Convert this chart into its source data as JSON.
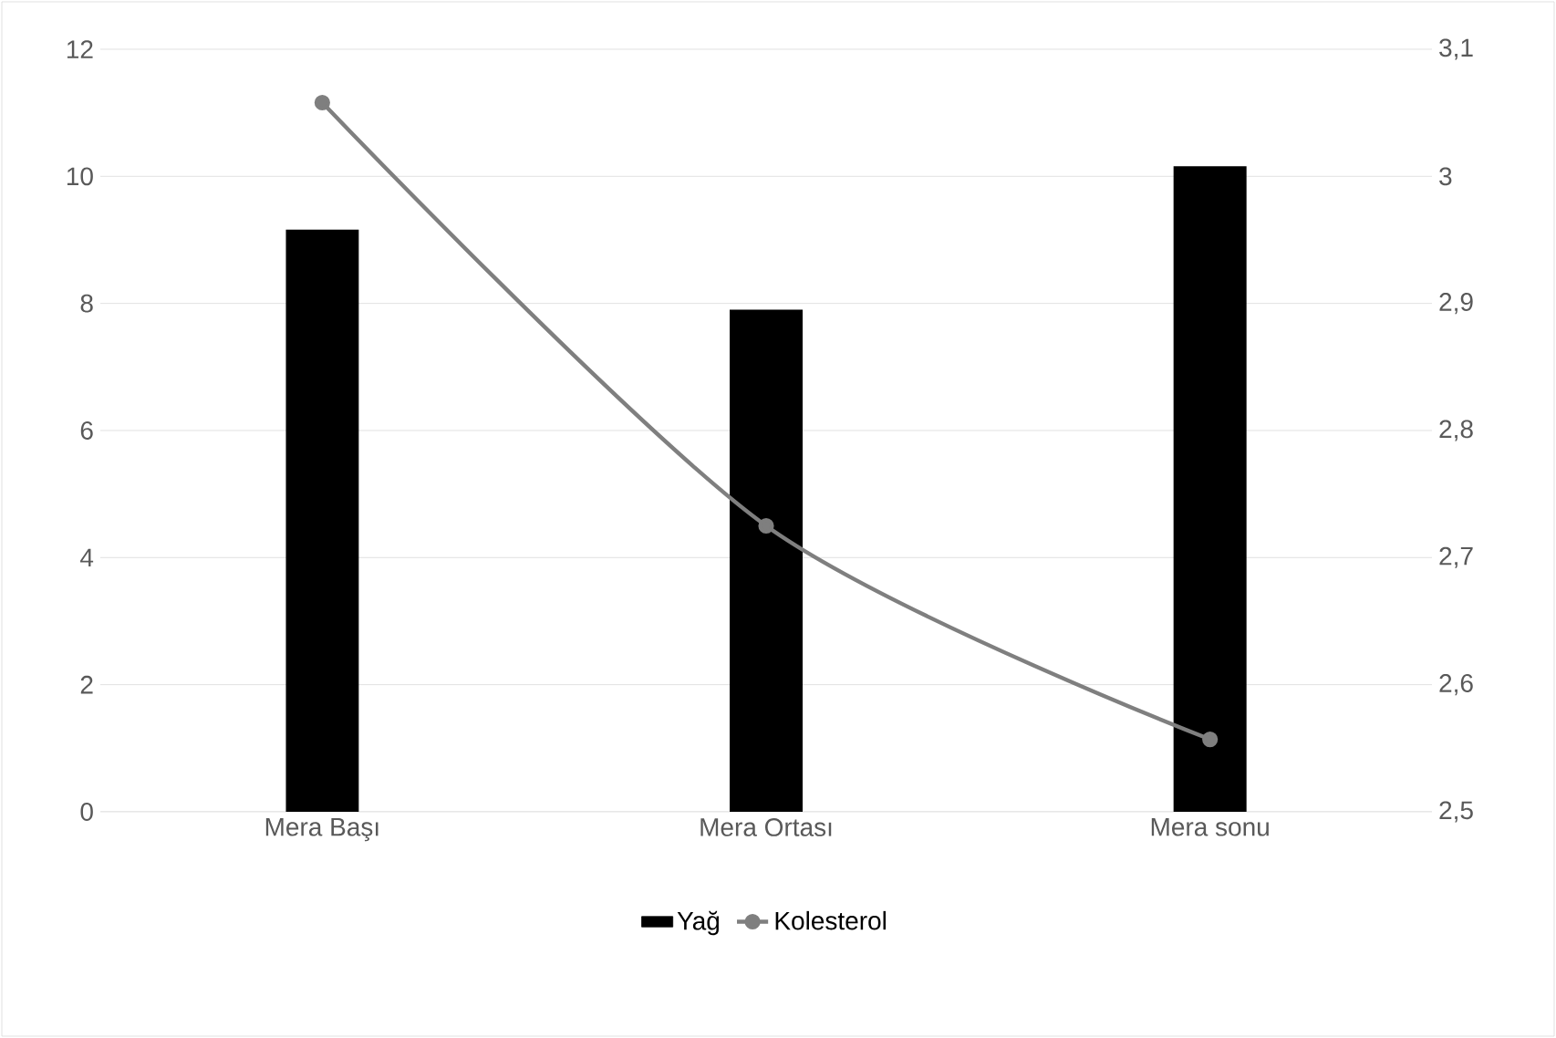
{
  "chart_data": {
    "type": "bar",
    "categories": [
      "Mera Başı",
      "Mera Ortası",
      "Mera sonu"
    ],
    "series": [
      {
        "name": "Yağ",
        "color": "#000000",
        "values": [
          9.16,
          7.9,
          10.16
        ]
      },
      {
        "name": "Kolesterol",
        "type": "line",
        "axis": "y2",
        "color": "#7f7f7f",
        "marker": "circle",
        "values": [
          3.058,
          2.725,
          2.557
        ]
      }
    ],
    "ylim": [
      0,
      12
    ],
    "yticks": [
      0,
      2,
      4,
      6,
      8,
      10,
      12
    ],
    "y2lim": [
      2.5,
      3.1
    ],
    "y2ticks": [
      {
        "value": 2.5,
        "label": "2,5"
      },
      {
        "value": 2.6,
        "label": "2,6"
      },
      {
        "value": 2.7,
        "label": "2,7"
      },
      {
        "value": 2.8,
        "label": "2,8"
      },
      {
        "value": 2.9,
        "label": "2,9"
      },
      3,
      {
        "value": 3.1,
        "label": "3,1"
      }
    ],
    "grid": "y",
    "legend": "bottom"
  }
}
